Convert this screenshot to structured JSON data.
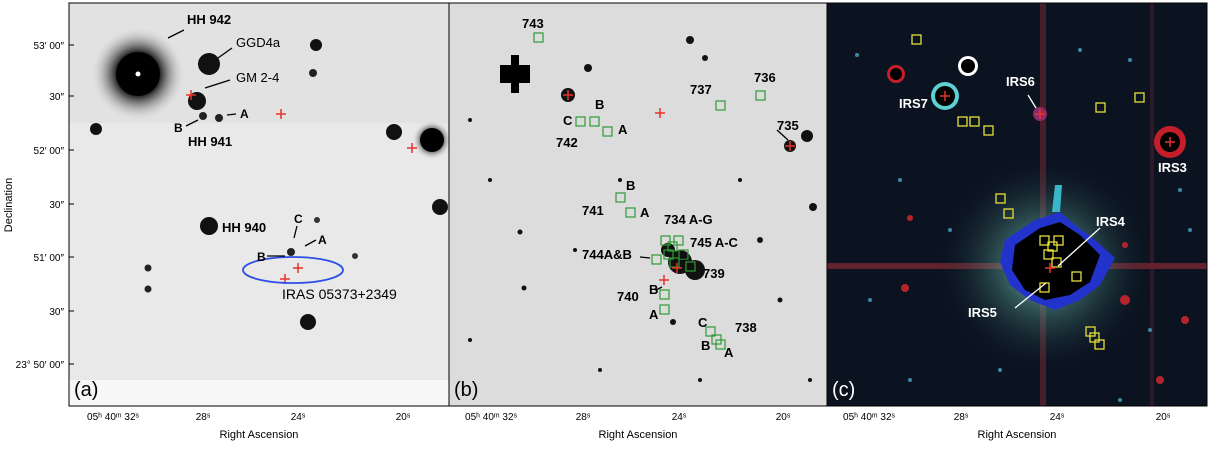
{
  "figure": {
    "y_axis_title": "Declination",
    "y_ticks": [
      "53′ 00″",
      "30″",
      "52′ 00″",
      "30″",
      "51′ 00″",
      "30″",
      "23° 50′ 00″"
    ],
    "panels": [
      {
        "letter": "(a)",
        "x_axis_title": "Right Ascension",
        "x_ticks": [
          "05ʰ 40ᵐ 32ˢ",
          "28ˢ",
          "24ˢ",
          "20ˢ"
        ],
        "labels": [
          "HH 942",
          "GGD4a",
          "GM 2-4",
          "A",
          "B",
          "HH 941",
          "HH 940",
          "C",
          "A",
          "B",
          "IRAS 05373+2349"
        ],
        "colors": {
          "background": "#e9e9e9",
          "cross": "#e8322a",
          "ellipse": "#2e4ee8"
        }
      },
      {
        "letter": "(b)",
        "x_axis_title": "Right Ascension",
        "x_ticks": [
          "05ʰ 40ᵐ 32ˢ",
          "28ˢ",
          "24ˢ",
          "20ˢ"
        ],
        "labels": [
          "743",
          "736",
          "737",
          "735",
          "B",
          "C",
          "A",
          "742",
          "B",
          "741",
          "A",
          "734 A-G",
          "744A&B",
          "745 A-C",
          "739",
          "B",
          "740",
          "A",
          "C",
          "738",
          "B",
          "A"
        ],
        "colors": {
          "background": "#dcdcdc",
          "cross": "#e8322a",
          "box": "#2f9a35"
        }
      },
      {
        "letter": "(c)",
        "x_axis_title": "Right Ascension",
        "x_ticks": [
          "05ʰ 40ᵐ 32ˢ",
          "28ˢ",
          "24ˢ",
          "20ˢ"
        ],
        "labels": [
          "IRS6",
          "IRS7",
          "IRS3",
          "IRS4",
          "IRS5"
        ],
        "colors": {
          "background": "#0b1320",
          "cross": "#e8322a",
          "box": "#e6df3a"
        }
      }
    ]
  }
}
